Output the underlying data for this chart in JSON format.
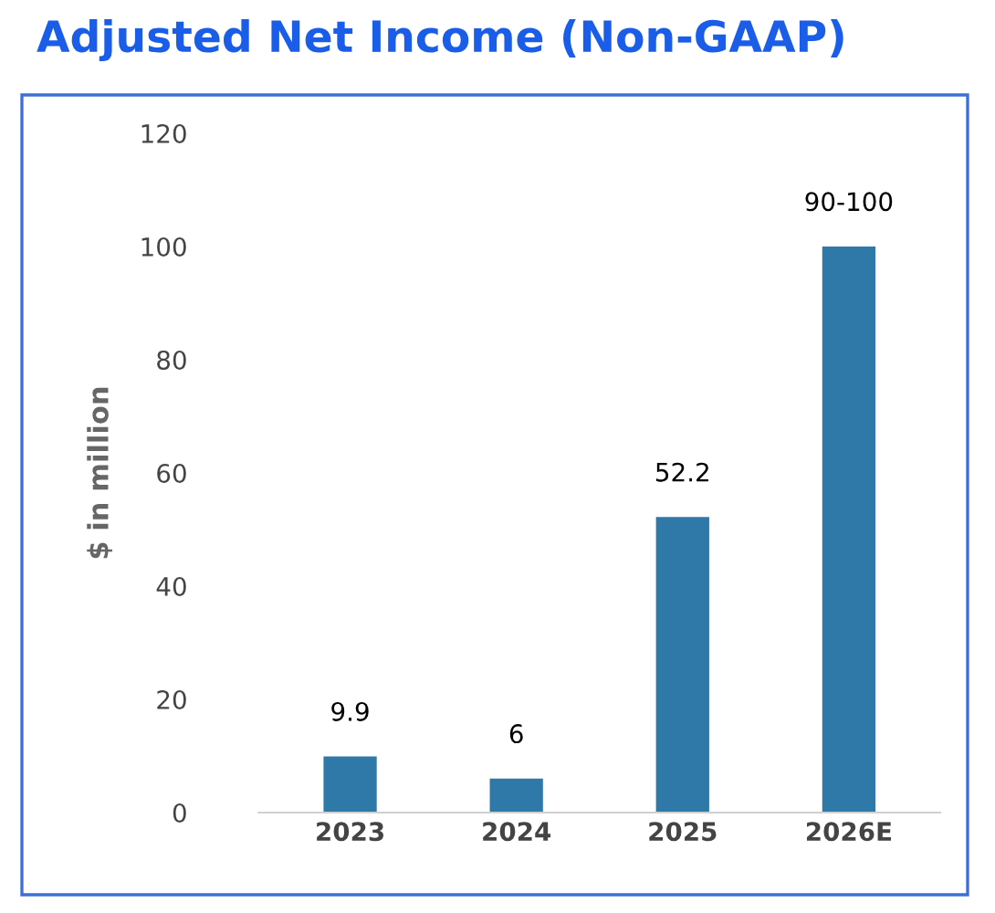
{
  "chart_data": {
    "type": "bar",
    "title": "Adjusted Net Income (Non-GAAP)",
    "ylabel": "$ in million",
    "categories": [
      "2023",
      "2024",
      "2025",
      "2026E"
    ],
    "values": [
      9.9,
      6,
      52.2,
      100
    ],
    "value_labels": [
      "9.9",
      "6",
      "52.2",
      "90-100"
    ],
    "color": "#2e79a7",
    "ylim": [
      0,
      120
    ],
    "yticks": [
      0,
      20,
      40,
      60,
      80,
      100,
      120
    ],
    "grid": false,
    "legend": false
  }
}
